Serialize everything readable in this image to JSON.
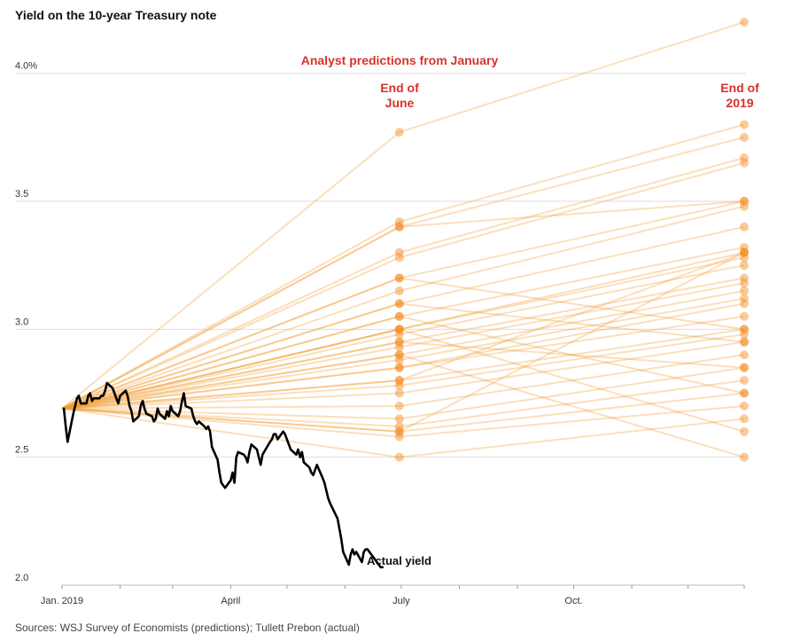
{
  "chart_data": {
    "type": "line",
    "title": "Yield on the 10-year Treasury note",
    "ylim": [
      2.0,
      4.2
    ],
    "y_ticks": [
      {
        "value": 2.0,
        "label": "2.0"
      },
      {
        "value": 2.5,
        "label": "2.5"
      },
      {
        "value": 3.0,
        "label": "3.0"
      },
      {
        "value": 3.5,
        "label": "3.5"
      },
      {
        "value": 4.0,
        "label": "4.0%"
      }
    ],
    "x_ticks": [
      {
        "label": "Jan. 2019",
        "date": "2019-01-01"
      },
      {
        "label": "April",
        "date": "2019-04-01"
      },
      {
        "label": "July",
        "date": "2019-07-01"
      },
      {
        "label": "Oct.",
        "date": "2019-10-01"
      }
    ],
    "x_range": [
      "2019-01-01",
      "2019-12-31"
    ],
    "grid": true,
    "annotations": {
      "header": "Analyst predictions from January",
      "june_label_line1": "End of",
      "june_label_line2": "June",
      "year_label_line1": "End of",
      "year_label_line2": "2019",
      "actual_label": "Actual yield"
    },
    "source": "Sources: WSJ Survey of Economists (predictions); Tullett Prebon (actual)",
    "prediction_start": {
      "date": "2019-01-01",
      "value": 2.69
    },
    "prediction_dates": [
      "2019-06-30",
      "2019-12-31"
    ],
    "predictions": [
      [
        3.77,
        4.2
      ],
      [
        3.42,
        3.8
      ],
      [
        3.4,
        3.75
      ],
      [
        3.3,
        3.67
      ],
      [
        3.28,
        3.65
      ],
      [
        3.2,
        3.5
      ],
      [
        3.15,
        3.48
      ],
      [
        3.1,
        3.4
      ],
      [
        3.05,
        3.32
      ],
      [
        3.0,
        3.3
      ],
      [
        3.0,
        3.28
      ],
      [
        2.98,
        3.25
      ],
      [
        2.95,
        3.2
      ],
      [
        2.93,
        3.18
      ],
      [
        2.9,
        3.15
      ],
      [
        2.88,
        3.12
      ],
      [
        2.85,
        3.1
      ],
      [
        2.85,
        3.05
      ],
      [
        2.8,
        3.0
      ],
      [
        2.78,
        2.98
      ],
      [
        2.75,
        2.95
      ],
      [
        2.7,
        2.9
      ],
      [
        2.65,
        2.85
      ],
      [
        2.62,
        2.8
      ],
      [
        2.6,
        2.75
      ],
      [
        2.58,
        2.7
      ],
      [
        2.5,
        2.65
      ],
      [
        3.0,
        2.6
      ],
      [
        2.9,
        2.5
      ],
      [
        3.2,
        3.0
      ],
      [
        3.1,
        2.95
      ],
      [
        2.95,
        2.85
      ],
      [
        3.4,
        3.5
      ],
      [
        2.6,
        3.3
      ],
      [
        3.05,
        2.75
      ],
      [
        2.8,
        3.3
      ]
    ],
    "actual_series": {
      "name": "Actual yield",
      "x": [
        "2019-01-02",
        "2019-01-03",
        "2019-01-04",
        "2019-01-07",
        "2019-01-08",
        "2019-01-09",
        "2019-01-10",
        "2019-01-11",
        "2019-01-14",
        "2019-01-15",
        "2019-01-16",
        "2019-01-17",
        "2019-01-18",
        "2019-01-21",
        "2019-01-22",
        "2019-01-23",
        "2019-01-24",
        "2019-01-25",
        "2019-01-28",
        "2019-01-29",
        "2019-01-30",
        "2019-01-31",
        "2019-02-01",
        "2019-02-04",
        "2019-02-05",
        "2019-02-06",
        "2019-02-07",
        "2019-02-08",
        "2019-02-11",
        "2019-02-12",
        "2019-02-13",
        "2019-02-14",
        "2019-02-15",
        "2019-02-18",
        "2019-02-19",
        "2019-02-20",
        "2019-02-21",
        "2019-02-22",
        "2019-02-25",
        "2019-02-26",
        "2019-02-27",
        "2019-02-28",
        "2019-03-01",
        "2019-03-04",
        "2019-03-05",
        "2019-03-06",
        "2019-03-07",
        "2019-03-08",
        "2019-03-11",
        "2019-03-12",
        "2019-03-13",
        "2019-03-14",
        "2019-03-15",
        "2019-03-18",
        "2019-03-19",
        "2019-03-20",
        "2019-03-21",
        "2019-03-22",
        "2019-03-25",
        "2019-03-26",
        "2019-03-27",
        "2019-03-28",
        "2019-03-29",
        "2019-04-01",
        "2019-04-02",
        "2019-04-03",
        "2019-04-04",
        "2019-04-05",
        "2019-04-08",
        "2019-04-09",
        "2019-04-10",
        "2019-04-11",
        "2019-04-12",
        "2019-04-15",
        "2019-04-16",
        "2019-04-17",
        "2019-04-18",
        "2019-04-22",
        "2019-04-23",
        "2019-04-24",
        "2019-04-25",
        "2019-04-26",
        "2019-04-29",
        "2019-04-30",
        "2019-05-01",
        "2019-05-02",
        "2019-05-03",
        "2019-05-06",
        "2019-05-07",
        "2019-05-08",
        "2019-05-09",
        "2019-05-10",
        "2019-05-13",
        "2019-05-14",
        "2019-05-15",
        "2019-05-16",
        "2019-05-17",
        "2019-05-20",
        "2019-05-21",
        "2019-05-22",
        "2019-05-23",
        "2019-05-24",
        "2019-05-28",
        "2019-05-29",
        "2019-05-30",
        "2019-05-31",
        "2019-06-03",
        "2019-06-04",
        "2019-06-05",
        "2019-06-06",
        "2019-06-07",
        "2019-06-10",
        "2019-06-11",
        "2019-06-12",
        "2019-06-13",
        "2019-06-14",
        "2019-06-17",
        "2019-06-18",
        "2019-06-19",
        "2019-06-20",
        "2019-06-21"
      ],
      "y": [
        2.69,
        2.62,
        2.56,
        2.67,
        2.7,
        2.73,
        2.74,
        2.71,
        2.71,
        2.74,
        2.75,
        2.72,
        2.73,
        2.73,
        2.74,
        2.74,
        2.76,
        2.79,
        2.77,
        2.75,
        2.73,
        2.71,
        2.74,
        2.76,
        2.74,
        2.7,
        2.68,
        2.64,
        2.66,
        2.7,
        2.72,
        2.69,
        2.67,
        2.66,
        2.64,
        2.65,
        2.69,
        2.67,
        2.65,
        2.68,
        2.66,
        2.7,
        2.68,
        2.66,
        2.68,
        2.72,
        2.75,
        2.7,
        2.69,
        2.66,
        2.64,
        2.63,
        2.64,
        2.62,
        2.61,
        2.62,
        2.6,
        2.54,
        2.49,
        2.44,
        2.4,
        2.39,
        2.38,
        2.41,
        2.44,
        2.4,
        2.5,
        2.52,
        2.51,
        2.5,
        2.48,
        2.52,
        2.55,
        2.53,
        2.5,
        2.47,
        2.51,
        2.56,
        2.57,
        2.59,
        2.59,
        2.57,
        2.6,
        2.59,
        2.57,
        2.55,
        2.53,
        2.51,
        2.53,
        2.5,
        2.52,
        2.48,
        2.46,
        2.44,
        2.43,
        2.45,
        2.47,
        2.42,
        2.4,
        2.37,
        2.34,
        2.32,
        2.26,
        2.22,
        2.18,
        2.13,
        2.08,
        2.12,
        2.14,
        2.12,
        2.13,
        2.09,
        2.13,
        2.14,
        2.14,
        2.13,
        2.1,
        2.09,
        2.08,
        2.07,
        2.07
      ]
    }
  }
}
